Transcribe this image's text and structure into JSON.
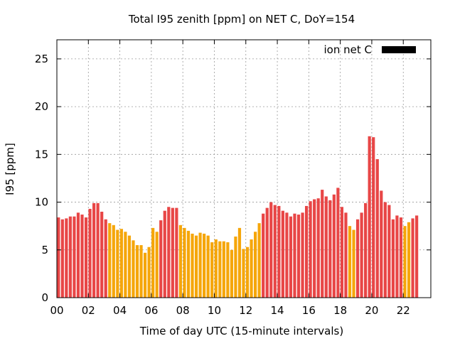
{
  "chart_data": {
    "type": "bar",
    "title": "Total I95 zenith [ppm] on NET C, DoY=154",
    "xlabel": "Time of day UTC (15-minute intervals)",
    "ylabel": "I95 [ppm]",
    "legend": {
      "label": "ion net C",
      "position": "top-right",
      "color": "#000000"
    },
    "grid": true,
    "xlim": [
      0,
      23.75
    ],
    "ylim": [
      0,
      27
    ],
    "x_ticks": [
      {
        "value": 0,
        "label": "00"
      },
      {
        "value": 2,
        "label": "02"
      },
      {
        "value": 4,
        "label": "04"
      },
      {
        "value": 6,
        "label": "06"
      },
      {
        "value": 8,
        "label": "08"
      },
      {
        "value": 10,
        "label": "10"
      },
      {
        "value": 12,
        "label": "12"
      },
      {
        "value": 14,
        "label": "14"
      },
      {
        "value": 16,
        "label": "16"
      },
      {
        "value": 18,
        "label": "18"
      },
      {
        "value": 20,
        "label": "20"
      },
      {
        "value": 22,
        "label": "22"
      }
    ],
    "y_ticks": [
      {
        "value": 0,
        "label": "0"
      },
      {
        "value": 5,
        "label": "5"
      },
      {
        "value": 10,
        "label": "10"
      },
      {
        "value": 15,
        "label": "15"
      },
      {
        "value": 20,
        "label": "20"
      },
      {
        "value": 25,
        "label": "25"
      }
    ],
    "colors": {
      "high": "#e84646",
      "low": "#f5a60a"
    },
    "bar_width_hours": 0.19,
    "bars": [
      {
        "x": 0.0,
        "value": 8.4,
        "level": "high"
      },
      {
        "x": 0.25,
        "value": 8.2,
        "level": "high"
      },
      {
        "x": 0.5,
        "value": 8.3,
        "level": "high"
      },
      {
        "x": 0.75,
        "value": 8.5,
        "level": "high"
      },
      {
        "x": 1.0,
        "value": 8.5,
        "level": "high"
      },
      {
        "x": 1.25,
        "value": 8.9,
        "level": "high"
      },
      {
        "x": 1.5,
        "value": 8.7,
        "level": "high"
      },
      {
        "x": 1.75,
        "value": 8.4,
        "level": "high"
      },
      {
        "x": 2.0,
        "value": 9.3,
        "level": "high"
      },
      {
        "x": 2.25,
        "value": 9.9,
        "level": "high"
      },
      {
        "x": 2.5,
        "value": 9.9,
        "level": "high"
      },
      {
        "x": 2.75,
        "value": 9.0,
        "level": "high"
      },
      {
        "x": 3.0,
        "value": 8.2,
        "level": "high"
      },
      {
        "x": 3.25,
        "value": 7.8,
        "level": "low"
      },
      {
        "x": 3.5,
        "value": 7.6,
        "level": "low"
      },
      {
        "x": 3.75,
        "value": 7.1,
        "level": "low"
      },
      {
        "x": 4.0,
        "value": 7.2,
        "level": "low"
      },
      {
        "x": 4.25,
        "value": 6.9,
        "level": "low"
      },
      {
        "x": 4.5,
        "value": 6.5,
        "level": "low"
      },
      {
        "x": 4.75,
        "value": 6.0,
        "level": "low"
      },
      {
        "x": 5.0,
        "value": 5.5,
        "level": "low"
      },
      {
        "x": 5.25,
        "value": 5.5,
        "level": "low"
      },
      {
        "x": 5.5,
        "value": 4.7,
        "level": "low"
      },
      {
        "x": 5.75,
        "value": 5.3,
        "level": "low"
      },
      {
        "x": 6.0,
        "value": 7.3,
        "level": "low"
      },
      {
        "x": 6.25,
        "value": 6.9,
        "level": "low"
      },
      {
        "x": 6.5,
        "value": 8.1,
        "level": "high"
      },
      {
        "x": 6.75,
        "value": 9.1,
        "level": "high"
      },
      {
        "x": 7.0,
        "value": 9.5,
        "level": "high"
      },
      {
        "x": 7.25,
        "value": 9.4,
        "level": "high"
      },
      {
        "x": 7.5,
        "value": 9.4,
        "level": "high"
      },
      {
        "x": 7.75,
        "value": 7.6,
        "level": "low"
      },
      {
        "x": 8.0,
        "value": 7.3,
        "level": "low"
      },
      {
        "x": 8.25,
        "value": 7.0,
        "level": "low"
      },
      {
        "x": 8.5,
        "value": 6.7,
        "level": "low"
      },
      {
        "x": 8.75,
        "value": 6.5,
        "level": "low"
      },
      {
        "x": 9.0,
        "value": 6.8,
        "level": "low"
      },
      {
        "x": 9.25,
        "value": 6.7,
        "level": "low"
      },
      {
        "x": 9.5,
        "value": 6.5,
        "level": "low"
      },
      {
        "x": 9.75,
        "value": 5.8,
        "level": "low"
      },
      {
        "x": 10.0,
        "value": 6.1,
        "level": "low"
      },
      {
        "x": 10.25,
        "value": 5.9,
        "level": "low"
      },
      {
        "x": 10.5,
        "value": 5.9,
        "level": "low"
      },
      {
        "x": 10.75,
        "value": 5.8,
        "level": "low"
      },
      {
        "x": 11.0,
        "value": 5.0,
        "level": "low"
      },
      {
        "x": 11.25,
        "value": 6.4,
        "level": "low"
      },
      {
        "x": 11.5,
        "value": 7.3,
        "level": "low"
      },
      {
        "x": 11.75,
        "value": 5.1,
        "level": "low"
      },
      {
        "x": 12.0,
        "value": 5.3,
        "level": "low"
      },
      {
        "x": 12.25,
        "value": 6.1,
        "level": "low"
      },
      {
        "x": 12.5,
        "value": 6.9,
        "level": "low"
      },
      {
        "x": 12.75,
        "value": 7.8,
        "level": "low"
      },
      {
        "x": 13.0,
        "value": 8.8,
        "level": "high"
      },
      {
        "x": 13.25,
        "value": 9.4,
        "level": "high"
      },
      {
        "x": 13.5,
        "value": 10.0,
        "level": "high"
      },
      {
        "x": 13.75,
        "value": 9.7,
        "level": "high"
      },
      {
        "x": 14.0,
        "value": 9.6,
        "level": "high"
      },
      {
        "x": 14.25,
        "value": 9.1,
        "level": "high"
      },
      {
        "x": 14.5,
        "value": 8.9,
        "level": "high"
      },
      {
        "x": 14.75,
        "value": 8.5,
        "level": "high"
      },
      {
        "x": 15.0,
        "value": 8.8,
        "level": "high"
      },
      {
        "x": 15.25,
        "value": 8.7,
        "level": "high"
      },
      {
        "x": 15.5,
        "value": 8.9,
        "level": "high"
      },
      {
        "x": 15.75,
        "value": 9.6,
        "level": "high"
      },
      {
        "x": 16.0,
        "value": 10.1,
        "level": "high"
      },
      {
        "x": 16.25,
        "value": 10.3,
        "level": "high"
      },
      {
        "x": 16.5,
        "value": 10.4,
        "level": "high"
      },
      {
        "x": 16.75,
        "value": 11.3,
        "level": "high"
      },
      {
        "x": 17.0,
        "value": 10.6,
        "level": "high"
      },
      {
        "x": 17.25,
        "value": 10.2,
        "level": "high"
      },
      {
        "x": 17.5,
        "value": 10.8,
        "level": "high"
      },
      {
        "x": 17.75,
        "value": 11.5,
        "level": "high"
      },
      {
        "x": 18.0,
        "value": 9.5,
        "level": "high"
      },
      {
        "x": 18.25,
        "value": 8.9,
        "level": "high"
      },
      {
        "x": 18.5,
        "value": 7.5,
        "level": "low"
      },
      {
        "x": 18.75,
        "value": 7.1,
        "level": "low"
      },
      {
        "x": 19.0,
        "value": 8.2,
        "level": "high"
      },
      {
        "x": 19.25,
        "value": 8.9,
        "level": "high"
      },
      {
        "x": 19.5,
        "value": 9.9,
        "level": "high"
      },
      {
        "x": 19.75,
        "value": 16.9,
        "level": "high"
      },
      {
        "x": 20.0,
        "value": 16.8,
        "level": "high"
      },
      {
        "x": 20.25,
        "value": 14.5,
        "level": "high"
      },
      {
        "x": 20.5,
        "value": 11.2,
        "level": "high"
      },
      {
        "x": 20.75,
        "value": 10.0,
        "level": "high"
      },
      {
        "x": 21.0,
        "value": 9.7,
        "level": "high"
      },
      {
        "x": 21.25,
        "value": 8.2,
        "level": "high"
      },
      {
        "x": 21.5,
        "value": 8.6,
        "level": "high"
      },
      {
        "x": 21.75,
        "value": 8.4,
        "level": "high"
      },
      {
        "x": 22.0,
        "value": 7.5,
        "level": "low"
      },
      {
        "x": 22.25,
        "value": 7.9,
        "level": "low"
      },
      {
        "x": 22.5,
        "value": 8.3,
        "level": "high"
      },
      {
        "x": 22.75,
        "value": 8.6,
        "level": "high"
      }
    ]
  }
}
